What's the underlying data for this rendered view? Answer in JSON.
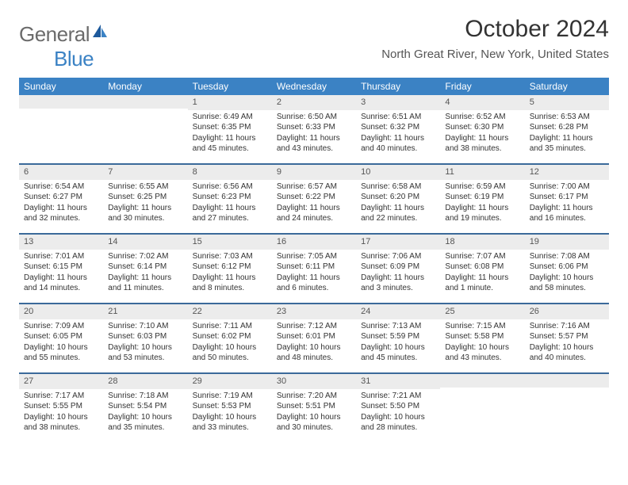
{
  "logo": {
    "word1": "General",
    "word2": "Blue"
  },
  "title": "October 2024",
  "location": "North Great River, New York, United States",
  "colors": {
    "header_bg": "#3b82c4",
    "divider": "#3b6a9a",
    "daynum_bg": "#ececec",
    "page_bg": "#ffffff",
    "logo_gray": "#6b6b6b",
    "logo_blue": "#3b82c4"
  },
  "dayheads": [
    "Sunday",
    "Monday",
    "Tuesday",
    "Wednesday",
    "Thursday",
    "Friday",
    "Saturday"
  ],
  "weeks": [
    [
      {
        "n": "",
        "sr": "",
        "ss": "",
        "dl": ""
      },
      {
        "n": "",
        "sr": "",
        "ss": "",
        "dl": ""
      },
      {
        "n": "1",
        "sr": "Sunrise: 6:49 AM",
        "ss": "Sunset: 6:35 PM",
        "dl": "Daylight: 11 hours and 45 minutes."
      },
      {
        "n": "2",
        "sr": "Sunrise: 6:50 AM",
        "ss": "Sunset: 6:33 PM",
        "dl": "Daylight: 11 hours and 43 minutes."
      },
      {
        "n": "3",
        "sr": "Sunrise: 6:51 AM",
        "ss": "Sunset: 6:32 PM",
        "dl": "Daylight: 11 hours and 40 minutes."
      },
      {
        "n": "4",
        "sr": "Sunrise: 6:52 AM",
        "ss": "Sunset: 6:30 PM",
        "dl": "Daylight: 11 hours and 38 minutes."
      },
      {
        "n": "5",
        "sr": "Sunrise: 6:53 AM",
        "ss": "Sunset: 6:28 PM",
        "dl": "Daylight: 11 hours and 35 minutes."
      }
    ],
    [
      {
        "n": "6",
        "sr": "Sunrise: 6:54 AM",
        "ss": "Sunset: 6:27 PM",
        "dl": "Daylight: 11 hours and 32 minutes."
      },
      {
        "n": "7",
        "sr": "Sunrise: 6:55 AM",
        "ss": "Sunset: 6:25 PM",
        "dl": "Daylight: 11 hours and 30 minutes."
      },
      {
        "n": "8",
        "sr": "Sunrise: 6:56 AM",
        "ss": "Sunset: 6:23 PM",
        "dl": "Daylight: 11 hours and 27 minutes."
      },
      {
        "n": "9",
        "sr": "Sunrise: 6:57 AM",
        "ss": "Sunset: 6:22 PM",
        "dl": "Daylight: 11 hours and 24 minutes."
      },
      {
        "n": "10",
        "sr": "Sunrise: 6:58 AM",
        "ss": "Sunset: 6:20 PM",
        "dl": "Daylight: 11 hours and 22 minutes."
      },
      {
        "n": "11",
        "sr": "Sunrise: 6:59 AM",
        "ss": "Sunset: 6:19 PM",
        "dl": "Daylight: 11 hours and 19 minutes."
      },
      {
        "n": "12",
        "sr": "Sunrise: 7:00 AM",
        "ss": "Sunset: 6:17 PM",
        "dl": "Daylight: 11 hours and 16 minutes."
      }
    ],
    [
      {
        "n": "13",
        "sr": "Sunrise: 7:01 AM",
        "ss": "Sunset: 6:15 PM",
        "dl": "Daylight: 11 hours and 14 minutes."
      },
      {
        "n": "14",
        "sr": "Sunrise: 7:02 AM",
        "ss": "Sunset: 6:14 PM",
        "dl": "Daylight: 11 hours and 11 minutes."
      },
      {
        "n": "15",
        "sr": "Sunrise: 7:03 AM",
        "ss": "Sunset: 6:12 PM",
        "dl": "Daylight: 11 hours and 8 minutes."
      },
      {
        "n": "16",
        "sr": "Sunrise: 7:05 AM",
        "ss": "Sunset: 6:11 PM",
        "dl": "Daylight: 11 hours and 6 minutes."
      },
      {
        "n": "17",
        "sr": "Sunrise: 7:06 AM",
        "ss": "Sunset: 6:09 PM",
        "dl": "Daylight: 11 hours and 3 minutes."
      },
      {
        "n": "18",
        "sr": "Sunrise: 7:07 AM",
        "ss": "Sunset: 6:08 PM",
        "dl": "Daylight: 11 hours and 1 minute."
      },
      {
        "n": "19",
        "sr": "Sunrise: 7:08 AM",
        "ss": "Sunset: 6:06 PM",
        "dl": "Daylight: 10 hours and 58 minutes."
      }
    ],
    [
      {
        "n": "20",
        "sr": "Sunrise: 7:09 AM",
        "ss": "Sunset: 6:05 PM",
        "dl": "Daylight: 10 hours and 55 minutes."
      },
      {
        "n": "21",
        "sr": "Sunrise: 7:10 AM",
        "ss": "Sunset: 6:03 PM",
        "dl": "Daylight: 10 hours and 53 minutes."
      },
      {
        "n": "22",
        "sr": "Sunrise: 7:11 AM",
        "ss": "Sunset: 6:02 PM",
        "dl": "Daylight: 10 hours and 50 minutes."
      },
      {
        "n": "23",
        "sr": "Sunrise: 7:12 AM",
        "ss": "Sunset: 6:01 PM",
        "dl": "Daylight: 10 hours and 48 minutes."
      },
      {
        "n": "24",
        "sr": "Sunrise: 7:13 AM",
        "ss": "Sunset: 5:59 PM",
        "dl": "Daylight: 10 hours and 45 minutes."
      },
      {
        "n": "25",
        "sr": "Sunrise: 7:15 AM",
        "ss": "Sunset: 5:58 PM",
        "dl": "Daylight: 10 hours and 43 minutes."
      },
      {
        "n": "26",
        "sr": "Sunrise: 7:16 AM",
        "ss": "Sunset: 5:57 PM",
        "dl": "Daylight: 10 hours and 40 minutes."
      }
    ],
    [
      {
        "n": "27",
        "sr": "Sunrise: 7:17 AM",
        "ss": "Sunset: 5:55 PM",
        "dl": "Daylight: 10 hours and 38 minutes."
      },
      {
        "n": "28",
        "sr": "Sunrise: 7:18 AM",
        "ss": "Sunset: 5:54 PM",
        "dl": "Daylight: 10 hours and 35 minutes."
      },
      {
        "n": "29",
        "sr": "Sunrise: 7:19 AM",
        "ss": "Sunset: 5:53 PM",
        "dl": "Daylight: 10 hours and 33 minutes."
      },
      {
        "n": "30",
        "sr": "Sunrise: 7:20 AM",
        "ss": "Sunset: 5:51 PM",
        "dl": "Daylight: 10 hours and 30 minutes."
      },
      {
        "n": "31",
        "sr": "Sunrise: 7:21 AM",
        "ss": "Sunset: 5:50 PM",
        "dl": "Daylight: 10 hours and 28 minutes."
      },
      {
        "n": "",
        "sr": "",
        "ss": "",
        "dl": ""
      },
      {
        "n": "",
        "sr": "",
        "ss": "",
        "dl": ""
      }
    ]
  ]
}
